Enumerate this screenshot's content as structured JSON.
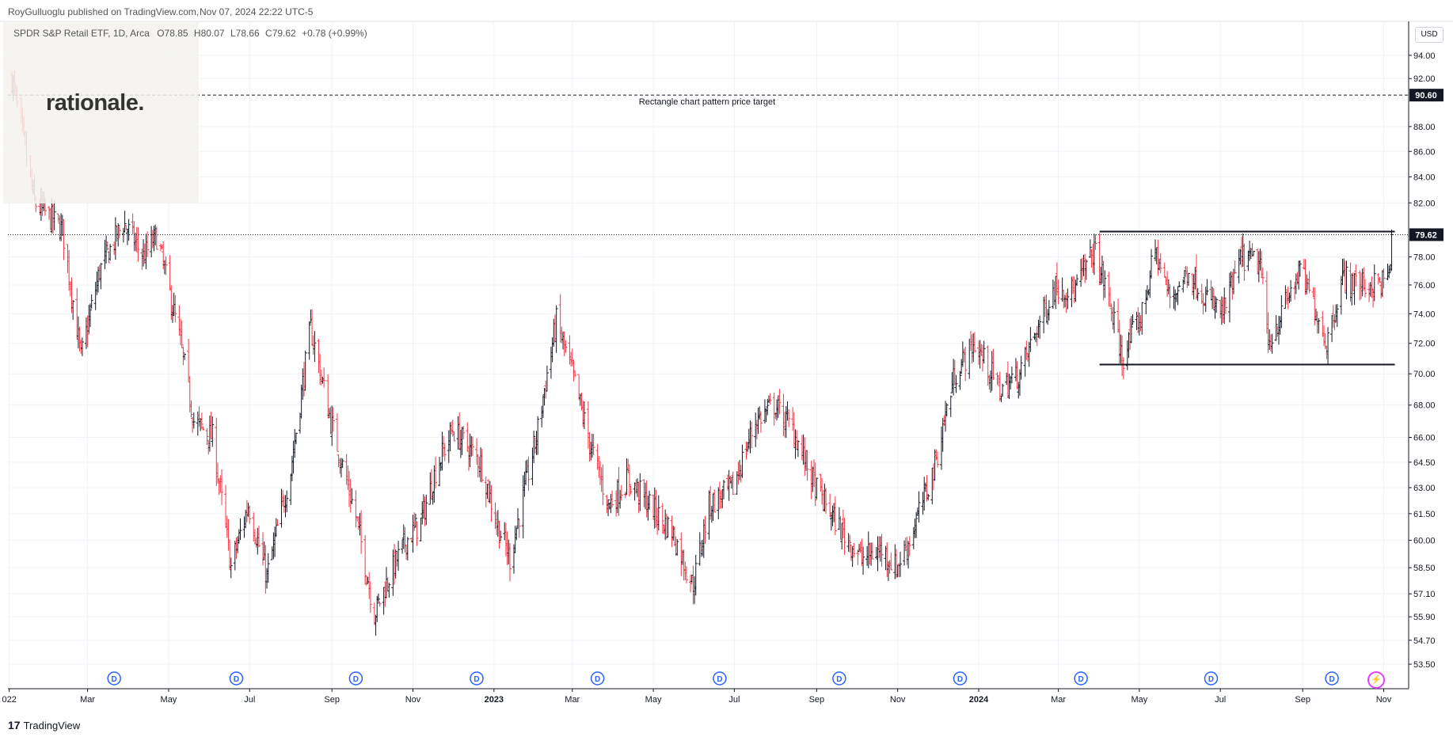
{
  "header": {
    "publisher": "RoyGulluoglu published on TradingView.com,",
    "timestamp": "Nov 07, 2024 22:22 UTC-5"
  },
  "legend": {
    "symbol": "SPDR S&P Retail ETF, 1D, Arca",
    "open_label": "O",
    "open": "78.85",
    "high_label": "H",
    "high": "80.07",
    "low_label": "L",
    "low": "78.66",
    "close_label": "C",
    "close": "79.62",
    "change": "+0.78 (+0.99%)"
  },
  "logo": {
    "text": "rationale."
  },
  "currency": "USD",
  "footer": {
    "brand": "TradingView",
    "mark": "17"
  },
  "colors": {
    "up": "#131722",
    "down": "#f23645",
    "dividend": "#2962ff",
    "grid": "#f0f3fa"
  },
  "dividend_marker": "D",
  "chart_data": {
    "type": "ohlc",
    "title": "SPDR S&P Retail ETF, 1D, Arca",
    "y_axis": {
      "position": "right",
      "range": [
        52.3,
        97.0
      ],
      "scale": "log",
      "ticks": [
        "94.00",
        "92.00",
        "88.00",
        "86.00",
        "84.00",
        "82.00",
        "78.00",
        "76.00",
        "74.00",
        "72.00",
        "70.00",
        "68.00",
        "66.00",
        "64.50",
        "63.00",
        "61.50",
        "60.00",
        "58.50",
        "57.10",
        "55.90",
        "54.70",
        "53.50"
      ]
    },
    "x_axis": {
      "range": [
        "2021-12-31",
        "2024-11-18"
      ],
      "ticks": [
        {
          "label": "022",
          "date": "2022-01-01"
        },
        {
          "label": "Mar",
          "date": "2022-03-01"
        },
        {
          "label": "May",
          "date": "2022-05-01"
        },
        {
          "label": "Jul",
          "date": "2022-07-01"
        },
        {
          "label": "Sep",
          "date": "2022-09-01"
        },
        {
          "label": "Nov",
          "date": "2022-11-01"
        },
        {
          "label": "2023",
          "date": "2023-01-01",
          "bold": true
        },
        {
          "label": "Mar",
          "date": "2023-03-01"
        },
        {
          "label": "May",
          "date": "2023-05-01"
        },
        {
          "label": "Jul",
          "date": "2023-07-01"
        },
        {
          "label": "Sep",
          "date": "2023-09-01"
        },
        {
          "label": "Nov",
          "date": "2023-11-01"
        },
        {
          "label": "2024",
          "date": "2024-01-01",
          "bold": true
        },
        {
          "label": "Mar",
          "date": "2024-03-01"
        },
        {
          "label": "May",
          "date": "2024-05-01"
        },
        {
          "label": "Jul",
          "date": "2024-07-01"
        },
        {
          "label": "Sep",
          "date": "2024-09-01"
        },
        {
          "label": "Nov",
          "date": "2024-11-01"
        }
      ]
    },
    "price_path": [
      {
        "date": "2022-01-03",
        "price": 92.0
      },
      {
        "date": "2022-01-20",
        "price": 82.0
      },
      {
        "date": "2022-02-10",
        "price": 80.0
      },
      {
        "date": "2022-02-24",
        "price": 71.0
      },
      {
        "date": "2022-03-10",
        "price": 77.0
      },
      {
        "date": "2022-03-28",
        "price": 80.5
      },
      {
        "date": "2022-04-12",
        "price": 78.0
      },
      {
        "date": "2022-04-22",
        "price": 79.5
      },
      {
        "date": "2022-05-10",
        "price": 72.0
      },
      {
        "date": "2022-05-20",
        "price": 67.0
      },
      {
        "date": "2022-06-03",
        "price": 66.0
      },
      {
        "date": "2022-06-17",
        "price": 58.5
      },
      {
        "date": "2022-06-30",
        "price": 62.0
      },
      {
        "date": "2022-07-14",
        "price": 58.0
      },
      {
        "date": "2022-08-01",
        "price": 64.0
      },
      {
        "date": "2022-08-16",
        "price": 73.0
      },
      {
        "date": "2022-08-31",
        "price": 67.0
      },
      {
        "date": "2022-09-20",
        "price": 61.0
      },
      {
        "date": "2022-10-03",
        "price": 56.0
      },
      {
        "date": "2022-10-14",
        "price": 58.0
      },
      {
        "date": "2022-10-27",
        "price": 60.0
      },
      {
        "date": "2022-11-07",
        "price": 61.0
      },
      {
        "date": "2022-11-18",
        "price": 64.0
      },
      {
        "date": "2022-12-01",
        "price": 66.5
      },
      {
        "date": "2022-12-22",
        "price": 64.5
      },
      {
        "date": "2023-01-03",
        "price": 61.0
      },
      {
        "date": "2023-01-13",
        "price": 59.0
      },
      {
        "date": "2023-02-02",
        "price": 66.0
      },
      {
        "date": "2023-02-17",
        "price": 73.5
      },
      {
        "date": "2023-03-01",
        "price": 70.0
      },
      {
        "date": "2023-03-13",
        "price": 66.0
      },
      {
        "date": "2023-03-28",
        "price": 62.0
      },
      {
        "date": "2023-04-12",
        "price": 63.5
      },
      {
        "date": "2023-04-28",
        "price": 62.0
      },
      {
        "date": "2023-05-15",
        "price": 60.5
      },
      {
        "date": "2023-05-31",
        "price": 57.5
      },
      {
        "date": "2023-06-12",
        "price": 62.0
      },
      {
        "date": "2023-06-30",
        "price": 63.0
      },
      {
        "date": "2023-07-17",
        "price": 67.0
      },
      {
        "date": "2023-07-31",
        "price": 68.0
      },
      {
        "date": "2023-08-14",
        "price": 66.5
      },
      {
        "date": "2023-08-31",
        "price": 63.0
      },
      {
        "date": "2023-09-20",
        "price": 60.5
      },
      {
        "date": "2023-10-05",
        "price": 59.0
      },
      {
        "date": "2023-10-20",
        "price": 59.5
      },
      {
        "date": "2023-10-31",
        "price": 58.5
      },
      {
        "date": "2023-11-10",
        "price": 60.0
      },
      {
        "date": "2023-11-28",
        "price": 64.0
      },
      {
        "date": "2023-12-14",
        "price": 70.0
      },
      {
        "date": "2023-12-29",
        "price": 72.0
      },
      {
        "date": "2024-01-17",
        "price": 69.0
      },
      {
        "date": "2024-02-01",
        "price": 70.0
      },
      {
        "date": "2024-02-14",
        "price": 73.0
      },
      {
        "date": "2024-02-28",
        "price": 76.0
      },
      {
        "date": "2024-03-13",
        "price": 75.5
      },
      {
        "date": "2024-03-28",
        "price": 78.5
      },
      {
        "date": "2024-04-08",
        "price": 75.0
      },
      {
        "date": "2024-04-18",
        "price": 71.0
      },
      {
        "date": "2024-05-03",
        "price": 74.0
      },
      {
        "date": "2024-05-13",
        "price": 78.5
      },
      {
        "date": "2024-05-24",
        "price": 75.0
      },
      {
        "date": "2024-06-07",
        "price": 77.0
      },
      {
        "date": "2024-06-21",
        "price": 75.0
      },
      {
        "date": "2024-07-03",
        "price": 74.0
      },
      {
        "date": "2024-07-17",
        "price": 78.0
      },
      {
        "date": "2024-07-31",
        "price": 77.5
      },
      {
        "date": "2024-08-06",
        "price": 72.0
      },
      {
        "date": "2024-08-16",
        "price": 74.0
      },
      {
        "date": "2024-08-30",
        "price": 77.0
      },
      {
        "date": "2024-09-10",
        "price": 74.5
      },
      {
        "date": "2024-09-19",
        "price": 72.0
      },
      {
        "date": "2024-10-01",
        "price": 76.5
      },
      {
        "date": "2024-10-15",
        "price": 76.0
      },
      {
        "date": "2024-10-28",
        "price": 76.0
      },
      {
        "date": "2024-11-05",
        "price": 76.5
      },
      {
        "date": "2024-11-07",
        "price": 79.62
      }
    ],
    "dividends": [
      "2022-03-21",
      "2022-06-21",
      "2022-09-19",
      "2022-12-19",
      "2023-03-20",
      "2023-06-20",
      "2023-09-18",
      "2023-12-18",
      "2024-03-18",
      "2024-06-24",
      "2024-09-23"
    ],
    "annotations": {
      "target_line": {
        "price": 90.6,
        "label": "Rectangle chart pattern price target",
        "price_label": "90.60"
      },
      "current_price": {
        "price": 79.62,
        "price_label": "79.62"
      },
      "rectangle": {
        "start": "2024-04-01",
        "end": "2024-11-07",
        "top": 79.85,
        "bottom": 70.6
      }
    }
  }
}
